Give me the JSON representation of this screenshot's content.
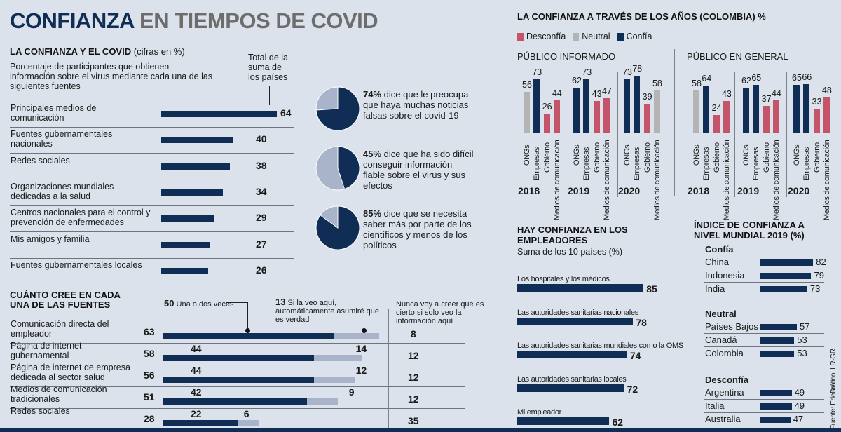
{
  "title": {
    "part1": "CONFIANZA",
    "part2": "EN TIEMPOS DE COVID"
  },
  "colors": {
    "navy": "#0f2d55",
    "light": "#a9b4ca",
    "desconfia": "#c4546a",
    "neutral": "#b4b4b4",
    "background": "#dbe2eb"
  },
  "covid": {
    "heading": "LA CONFIANZA Y EL COVID",
    "heading_note": "(cifras en %)",
    "description": "Porcentaje de participantes que obtienen información sobre el virus mediante cada una de las siguientes fuentes",
    "total_label": "Total de la suma de los países",
    "rows": [
      {
        "label": "Principales medios de comunicación",
        "value": 64
      },
      {
        "label": "Fuentes gubernamentales nacionales",
        "value": 40
      },
      {
        "label": "Redes sociales",
        "value": 38
      },
      {
        "label": "Organizaciones mundiales dedicadas a la salud",
        "value": 34
      },
      {
        "label": "Centros nacionales para el control y prevención de enfermedades",
        "value": 29
      },
      {
        "label": "Mis amigos y familia",
        "value": 27
      },
      {
        "label": "Fuentes gubernamentales locales",
        "value": 26
      }
    ]
  },
  "pies": [
    {
      "pct": 74,
      "bold": "74%",
      "text": "dice que le preocupa que haya muchas noticias falsas sobre el covid-19"
    },
    {
      "pct": 45,
      "bold": "45%",
      "text": "dice que ha sido difícil conseguir información fiable sobre el virus y sus efectos"
    },
    {
      "pct": 85,
      "bold": "85%",
      "text": "dice que se necesita saber más por parte de los científicos y menos de los políticos"
    }
  ],
  "belief": {
    "heading": "CUÁNTO CREE EN CADA UNA DE LAS FUENTES",
    "legend_once_value": "50",
    "legend_once": "Una o dos veces",
    "legend_auto_value": "13",
    "legend_auto": "Si la veo aquí, automáticamente asumiré que es verdad",
    "legend_never": "Nunca voy a creer que es cierto si solo veo la información aquí",
    "rows": [
      {
        "label": "Comunicación directa del empleador",
        "total": 63,
        "once": 50,
        "auto": 13,
        "never": 8
      },
      {
        "label": "Página de internet gubernamental",
        "total": 58,
        "once": 44,
        "auto": 14,
        "never": 12
      },
      {
        "label": "Página de internet de empresa dedicada al  sector salud",
        "total": 56,
        "once": 44,
        "auto": 12,
        "never": 12
      },
      {
        "label": "Medios de comunicación tradicionales",
        "total": 51,
        "once": 42,
        "auto": 9,
        "never": 12
      },
      {
        "label": "Redes sociales",
        "total": 28,
        "once": 22,
        "auto": 6,
        "never": 35
      }
    ]
  },
  "chart_data": [
    {
      "type": "bar",
      "title": "LA CONFIANZA A TRAVÉS DE LOS AÑOS  (COLOMBIA) %",
      "legend": [
        {
          "name": "Desconfía",
          "color": "#c4546a"
        },
        {
          "name": "Neutral",
          "color": "#b4b4b4"
        },
        {
          "name": "Confía",
          "color": "#0f2d55"
        }
      ],
      "categories": [
        "ONGs",
        "Empresas",
        "Gobierno",
        "Medios de comunicación"
      ],
      "panels": [
        {
          "name": "PÚBLICO INFORMADO",
          "groups": [
            {
              "year": "2018",
              "values": [
                56,
                73,
                26,
                44
              ],
              "status": [
                "Neutral",
                "Confía",
                "Desconfía",
                "Desconfía"
              ]
            },
            {
              "year": "2019",
              "values": [
                62,
                73,
                43,
                47
              ],
              "status": [
                "Confía",
                "Confía",
                "Desconfía",
                "Desconfía"
              ]
            },
            {
              "year": "2020",
              "values": [
                73,
                78,
                39,
                58
              ],
              "status": [
                "Confía",
                "Confía",
                "Desconfía",
                "Neutral"
              ]
            }
          ]
        },
        {
          "name": "PÚBLICO EN GENERAL",
          "groups": [
            {
              "year": "2018",
              "values": [
                58,
                64,
                24,
                43
              ],
              "status": [
                "Neutral",
                "Confía",
                "Desconfía",
                "Desconfía"
              ]
            },
            {
              "year": "2019",
              "values": [
                62,
                65,
                37,
                44
              ],
              "status": [
                "Confía",
                "Confía",
                "Desconfía",
                "Desconfía"
              ]
            },
            {
              "year": "2020",
              "values": [
                65,
                66,
                33,
                48
              ],
              "status": [
                "Confía",
                "Confía",
                "Desconfía",
                "Desconfía"
              ]
            }
          ]
        }
      ]
    },
    {
      "type": "bar",
      "title": "HAY CONFIANZA EN LOS EMPLEADORES",
      "subtitle": "Suma de los 10 países (%)",
      "categories": [
        "Los hospitales y los médicos",
        "Las autoridades sanitarias nacionales",
        "Las autoridades sanitarias mundiales como la OMS",
        "Las autoridades sanitarias locales",
        "Mi empleador"
      ],
      "values": [
        85,
        78,
        74,
        72,
        62
      ]
    },
    {
      "type": "bar",
      "title": "ÍNDICE DE CONFIANZA A NIVEL MUNDIAL 2019 (%)",
      "groups": [
        {
          "name": "Confía",
          "items": [
            {
              "label": "China",
              "value": 82
            },
            {
              "label": "Indonesia",
              "value": 79
            },
            {
              "label": "India",
              "value": 73
            }
          ]
        },
        {
          "name": "Neutral",
          "items": [
            {
              "label": "Países Bajos",
              "value": 57
            },
            {
              "label": "Canadá",
              "value": 53
            },
            {
              "label": "Colombia",
              "value": 53
            }
          ]
        },
        {
          "name": "Desconfía",
          "items": [
            {
              "label": "Argentina",
              "value": 49
            },
            {
              "label": "Italia",
              "value": 49
            },
            {
              "label": "Australia",
              "value": 47
            }
          ]
        }
      ]
    }
  ],
  "credits": {
    "graphic": "Gráfico: LR-GR",
    "source": "Fuente: Edelman"
  }
}
